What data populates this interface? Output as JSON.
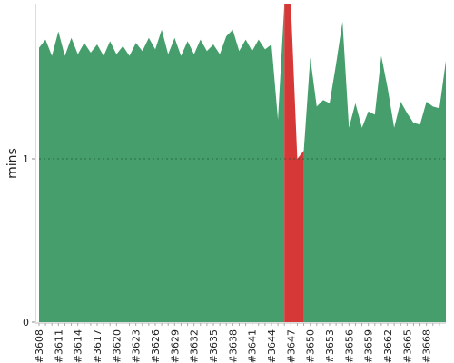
{
  "chart_data": {
    "type": "area",
    "title": "",
    "xlabel": "",
    "ylabel": "mins",
    "ylim": [
      0,
      1.95
    ],
    "yticks": [
      0,
      1
    ],
    "grid_y_value": 1,
    "x_start": 3608,
    "x_end": 3669,
    "xtick_labels": [
      "#3608",
      "#3611",
      "#3614",
      "#3617",
      "#3620",
      "#3623",
      "#3626",
      "#3629",
      "#3632",
      "#3635",
      "#3638",
      "#3641",
      "#3644",
      "#3647",
      "#3650",
      "#3653",
      "#3656",
      "#3659",
      "#3662",
      "#3665",
      "#3668"
    ],
    "colors": {
      "success": "#459e6b",
      "failure": "#d63838",
      "grid": "#1a5c33",
      "axis": "#bbbbbb"
    },
    "series": [
      {
        "status": "success",
        "points": [
          [
            3608,
            1.68
          ],
          [
            3609,
            1.73
          ],
          [
            3610,
            1.63
          ],
          [
            3611,
            1.78
          ],
          [
            3612,
            1.63
          ],
          [
            3613,
            1.74
          ],
          [
            3614,
            1.64
          ],
          [
            3615,
            1.71
          ],
          [
            3616,
            1.65
          ],
          [
            3617,
            1.7
          ],
          [
            3618,
            1.63
          ],
          [
            3619,
            1.72
          ],
          [
            3620,
            1.64
          ],
          [
            3621,
            1.69
          ],
          [
            3622,
            1.63
          ],
          [
            3623,
            1.71
          ],
          [
            3624,
            1.66
          ],
          [
            3625,
            1.74
          ],
          [
            3626,
            1.67
          ],
          [
            3627,
            1.79
          ],
          [
            3628,
            1.64
          ],
          [
            3629,
            1.74
          ],
          [
            3630,
            1.63
          ],
          [
            3631,
            1.72
          ],
          [
            3632,
            1.64
          ],
          [
            3633,
            1.73
          ],
          [
            3634,
            1.66
          ],
          [
            3635,
            1.7
          ],
          [
            3636,
            1.64
          ],
          [
            3637,
            1.75
          ],
          [
            3638,
            1.79
          ],
          [
            3639,
            1.66
          ],
          [
            3640,
            1.73
          ],
          [
            3641,
            1.66
          ],
          [
            3642,
            1.73
          ],
          [
            3643,
            1.67
          ],
          [
            3644,
            1.7
          ],
          [
            3645,
            1.24
          ],
          [
            3646,
            1.95
          ]
        ]
      },
      {
        "status": "failure",
        "points": [
          [
            3646,
            1.95
          ],
          [
            3647,
            1.95
          ],
          [
            3648,
            1.0
          ],
          [
            3649,
            1.05
          ]
        ]
      },
      {
        "status": "success",
        "points": [
          [
            3649,
            1.05
          ],
          [
            3650,
            1.62
          ],
          [
            3651,
            1.32
          ],
          [
            3652,
            1.36
          ],
          [
            3653,
            1.34
          ],
          [
            3654,
            1.58
          ],
          [
            3655,
            1.84
          ],
          [
            3656,
            1.19
          ],
          [
            3657,
            1.34
          ],
          [
            3658,
            1.19
          ],
          [
            3659,
            1.29
          ],
          [
            3660,
            1.27
          ],
          [
            3661,
            1.63
          ],
          [
            3662,
            1.43
          ],
          [
            3663,
            1.19
          ],
          [
            3664,
            1.35
          ],
          [
            3665,
            1.28
          ],
          [
            3666,
            1.22
          ],
          [
            3667,
            1.21
          ],
          [
            3668,
            1.35
          ],
          [
            3669,
            1.32
          ],
          [
            3670,
            1.31
          ],
          [
            3671,
            1.6
          ]
        ]
      }
    ]
  }
}
